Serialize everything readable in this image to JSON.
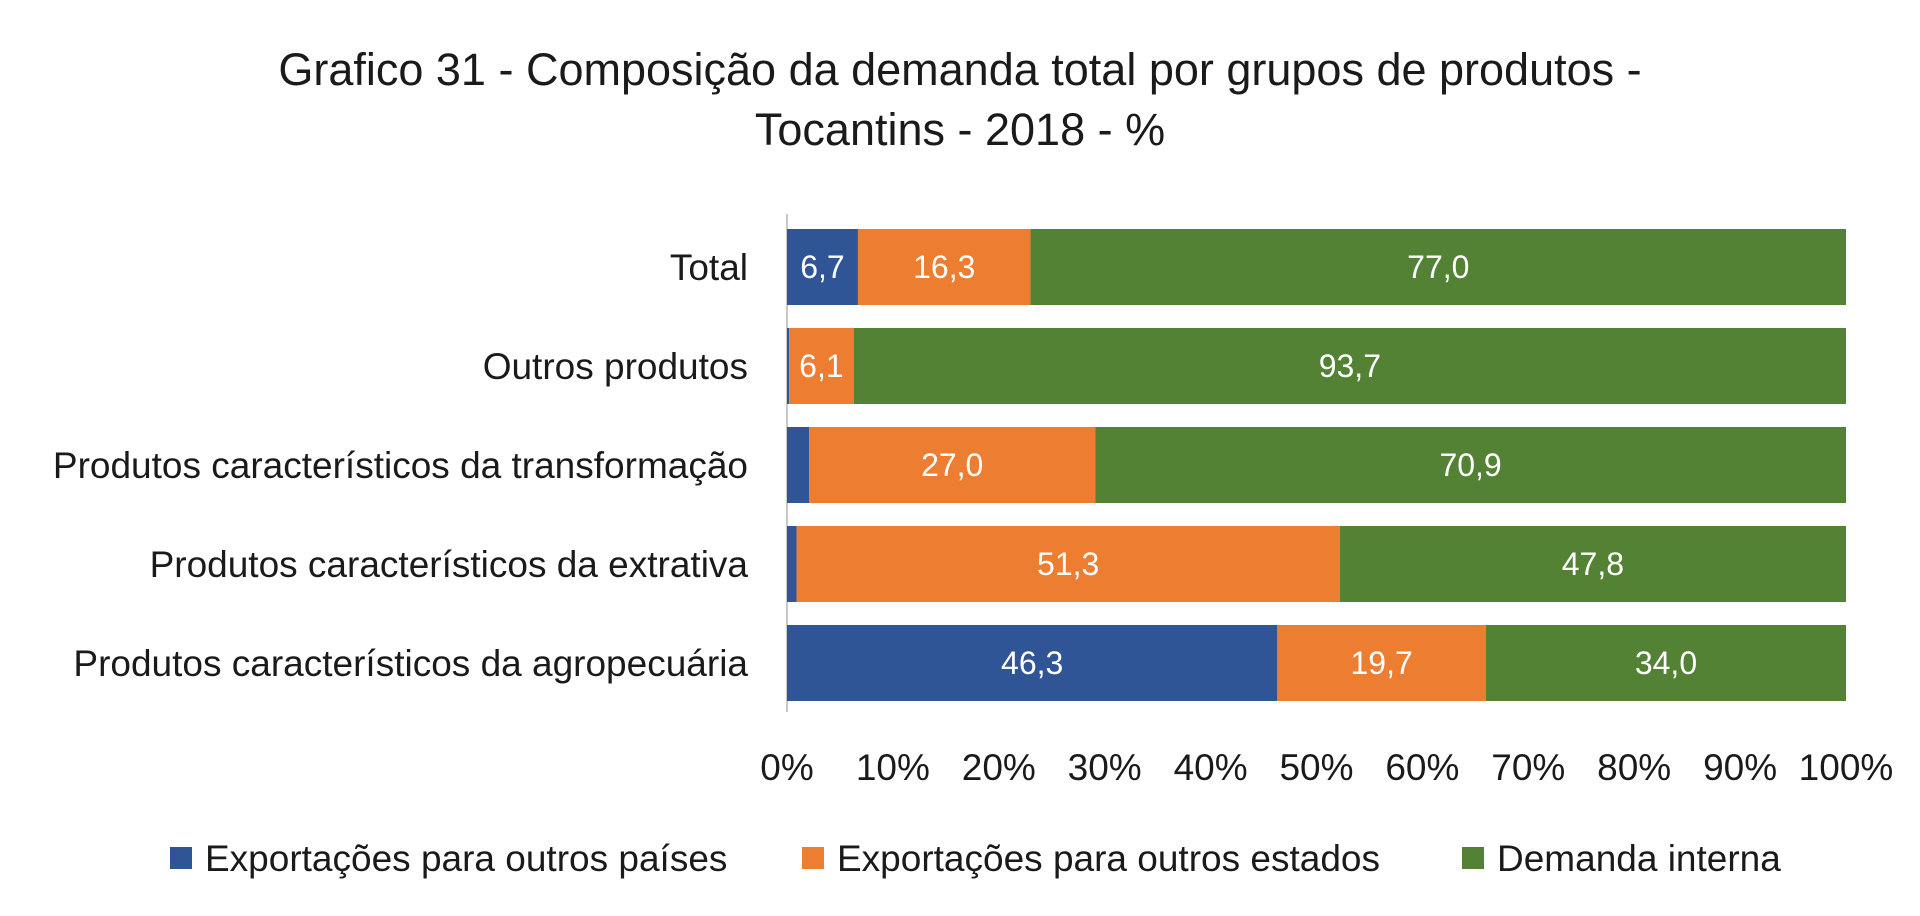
{
  "chart_data": {
    "type": "bar",
    "orientation": "horizontal",
    "stacked": true,
    "title_lines": [
      "Grafico 31 - Composição da demanda total por grupos de produtos -",
      "Tocantins - 2018 - %"
    ],
    "categories": [
      "Total",
      "Outros produtos",
      "Produtos característicos da transformação",
      "Produtos característicos da extrativa",
      "Produtos característicos da agropecuária"
    ],
    "series": [
      {
        "name": "Exportações para outros países",
        "color": "#2F5597",
        "values": [
          6.7,
          0.2,
          2.1,
          0.9,
          46.3
        ],
        "labels": [
          "6,7",
          "",
          "",
          "",
          "46,3"
        ]
      },
      {
        "name": "Exportações para outros estados",
        "color": "#ED7D31",
        "values": [
          16.3,
          6.1,
          27.0,
          51.3,
          19.7
        ],
        "labels": [
          "16,3",
          "6,1",
          "27,0",
          "51,3",
          "19,7"
        ]
      },
      {
        "name": "Demanda interna",
        "color": "#548235",
        "values": [
          77.0,
          93.7,
          70.9,
          47.8,
          34.0
        ],
        "labels": [
          "77,0",
          "93,7",
          "70,9",
          "47,8",
          "34,0"
        ]
      }
    ],
    "xlim": [
      0,
      100
    ],
    "x_ticks": [
      "0%",
      "10%",
      "20%",
      "30%",
      "40%",
      "50%",
      "60%",
      "70%",
      "80%",
      "90%",
      "100%"
    ],
    "legend_position": "bottom",
    "grid": false
  }
}
